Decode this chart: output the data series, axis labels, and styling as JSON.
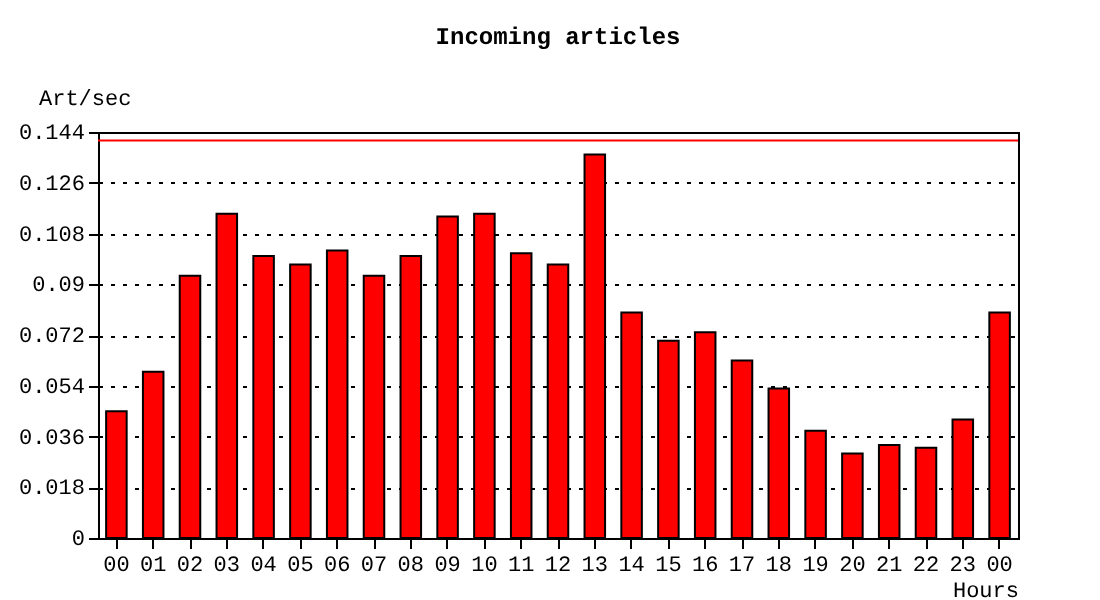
{
  "chart_data": {
    "type": "bar",
    "title": "Incoming articles",
    "xlabel": "Hours",
    "ylabel": "Art/sec",
    "categories": [
      "00",
      "01",
      "02",
      "03",
      "04",
      "05",
      "06",
      "07",
      "08",
      "09",
      "10",
      "11",
      "12",
      "13",
      "14",
      "15",
      "16",
      "17",
      "18",
      "19",
      "20",
      "21",
      "22",
      "23",
      "00"
    ],
    "values": [
      0.045,
      0.059,
      0.093,
      0.115,
      0.1,
      0.097,
      0.102,
      0.093,
      0.1,
      0.114,
      0.115,
      0.101,
      0.097,
      0.136,
      0.08,
      0.07,
      0.073,
      0.063,
      0.053,
      0.038,
      0.03,
      0.033,
      0.032,
      0.042,
      0.08
    ],
    "color": "#ff0000",
    "ylim": [
      0,
      0.144
    ],
    "yticks": [
      0,
      0.018,
      0.036,
      0.054,
      0.072,
      0.09,
      0.108,
      0.126,
      0.144
    ],
    "ref_lines": [
      {
        "axis": "y",
        "value": 0.141,
        "color": "#ff0000"
      }
    ],
    "grid": "y"
  }
}
